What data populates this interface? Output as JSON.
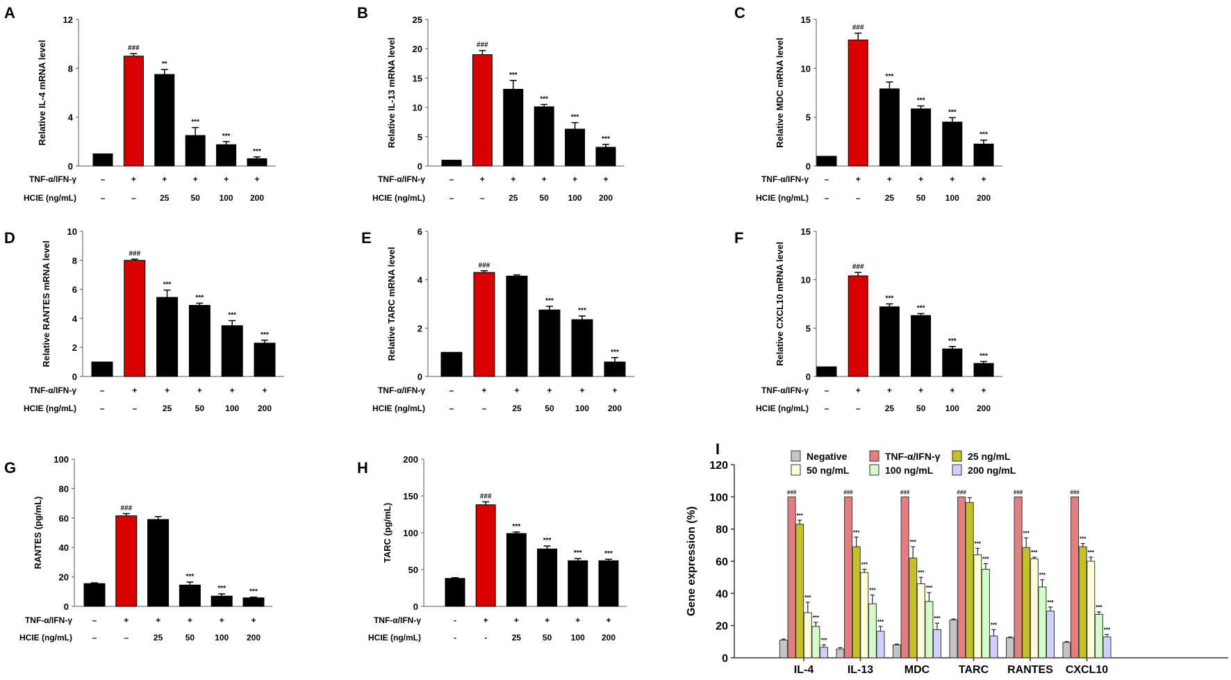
{
  "chart_data": [
    {
      "panel": "A",
      "type": "bar",
      "ylabel": "Relative IL-4 mRNA level",
      "ylim": [
        0,
        12
      ],
      "yticks": [
        0,
        4,
        8,
        12
      ],
      "values": [
        1,
        9.0,
        7.5,
        2.5,
        1.75,
        0.6
      ],
      "errors": [
        0,
        0.2,
        0.4,
        0.65,
        0.25,
        0.15
      ],
      "sig": [
        "",
        "###",
        "**",
        "***",
        "***",
        "***"
      ],
      "row1_label": "TNF-α/IFN-γ",
      "row1": [
        "–",
        "+",
        "+",
        "+",
        "+",
        "+"
      ],
      "row2_label": "HCIE (ng/mL)",
      "row2": [
        "–",
        "–",
        "25",
        "50",
        "100",
        "200"
      ]
    },
    {
      "panel": "B",
      "type": "bar",
      "ylabel": "Relative IL-13 mRNA level",
      "ylim": [
        0,
        25
      ],
      "yticks": [
        0,
        5,
        10,
        15,
        20,
        25
      ],
      "values": [
        1,
        19.0,
        13.1,
        10.1,
        6.3,
        3.2
      ],
      "errors": [
        0,
        0.7,
        1.5,
        0.4,
        1.1,
        0.5
      ],
      "sig": [
        "",
        "###",
        "***",
        "***",
        "***",
        "***"
      ],
      "row1_label": "TNF-α/IFN-γ",
      "row1": [
        "–",
        "+",
        "+",
        "+",
        "+",
        "+"
      ],
      "row2_label": "HCIE (ng/mL)",
      "row2": [
        "–",
        "–",
        "25",
        "50",
        "100",
        "200"
      ]
    },
    {
      "panel": "C",
      "type": "bar",
      "ylabel": "Relative MDC mRNA level",
      "ylim": [
        0,
        15
      ],
      "yticks": [
        0,
        5,
        10,
        15
      ],
      "values": [
        1,
        12.9,
        7.9,
        5.85,
        4.5,
        2.25
      ],
      "errors": [
        0,
        0.7,
        0.7,
        0.3,
        0.45,
        0.4
      ],
      "sig": [
        "",
        "###",
        "***",
        "***",
        "***",
        "***"
      ],
      "row1_label": "TNF-α/IFN-γ",
      "row1": [
        "–",
        "+",
        "+",
        "+",
        "+",
        "+"
      ],
      "row2_label": "HCIE (ng/mL)",
      "row2": [
        "–",
        "–",
        "25",
        "50",
        "100",
        "200"
      ]
    },
    {
      "panel": "D",
      "type": "bar",
      "ylabel": "Relative RANTES mRNA level",
      "ylim": [
        0,
        10
      ],
      "yticks": [
        0,
        2,
        4,
        6,
        8,
        10
      ],
      "values": [
        1,
        8.0,
        5.45,
        4.9,
        3.5,
        2.3
      ],
      "errors": [
        0,
        0.08,
        0.5,
        0.15,
        0.35,
        0.2
      ],
      "sig": [
        "",
        "###",
        "***",
        "***",
        "***",
        "***"
      ],
      "row1_label": "TNF-α/IFN-γ",
      "row1": [
        "–",
        "+",
        "+",
        "+",
        "+",
        "+"
      ],
      "row2_label": "HCIE (ng/mL)",
      "row2": [
        "–",
        "–",
        "25",
        "50",
        "100",
        "200"
      ]
    },
    {
      "panel": "E",
      "type": "bar",
      "ylabel": "Relative TARC mRNA level",
      "ylim": [
        0,
        6
      ],
      "yticks": [
        0,
        2,
        4,
        6
      ],
      "values": [
        1,
        4.3,
        4.15,
        2.75,
        2.35,
        0.6
      ],
      "errors": [
        0,
        0.07,
        0.05,
        0.15,
        0.15,
        0.18
      ],
      "sig": [
        "",
        "###",
        "",
        "***",
        "***",
        "***"
      ],
      "row1_label": "TNF-α/IFN-γ",
      "row1": [
        "–",
        "+",
        "+",
        "+",
        "+",
        "+"
      ],
      "row2_label": "HCIE (ng/mL)",
      "row2": [
        "–",
        "–",
        "25",
        "50",
        "100",
        "200"
      ]
    },
    {
      "panel": "F",
      "type": "bar",
      "ylabel": "Relative CXCL10 mRNA level",
      "ylim": [
        0,
        15
      ],
      "yticks": [
        0,
        5,
        10,
        15
      ],
      "values": [
        1,
        10.4,
        7.2,
        6.3,
        2.85,
        1.35
      ],
      "errors": [
        0,
        0.35,
        0.3,
        0.2,
        0.25,
        0.2
      ],
      "sig": [
        "",
        "###",
        "***",
        "***",
        "***",
        "***"
      ],
      "row1_label": "TNF-α/IFN-γ",
      "row1": [
        "–",
        "+",
        "+",
        "+",
        "+",
        "+"
      ],
      "row2_label": "HCIE (ng/mL)",
      "row2": [
        "–",
        "–",
        "25",
        "50",
        "100",
        "200"
      ]
    },
    {
      "panel": "G",
      "type": "bar",
      "ylabel": "RANTES (pg/mL)",
      "ylim": [
        0,
        100
      ],
      "yticks": [
        0,
        20,
        40,
        60,
        80,
        100
      ],
      "values": [
        15.5,
        61.5,
        59,
        14.5,
        7,
        5.8
      ],
      "errors": [
        0.5,
        1.5,
        2,
        2,
        1.5,
        0.5
      ],
      "sig": [
        "",
        "###",
        "",
        "***",
        "***",
        "***"
      ],
      "row1_label": "TNF-α/IFN-γ",
      "row1": [
        "–",
        "+",
        "+",
        "+",
        "+",
        "+"
      ],
      "row2_label": "HCIE (ng/mL)",
      "row2": [
        "–",
        "–",
        "25",
        "50",
        "100",
        "200"
      ]
    },
    {
      "panel": "H",
      "type": "bar",
      "ylabel": "TARC (pg/mL)",
      "ylim": [
        0,
        200
      ],
      "yticks": [
        0,
        50,
        100,
        150,
        200
      ],
      "values": [
        38,
        138,
        99,
        78,
        62,
        62
      ],
      "errors": [
        1,
        4,
        2,
        4,
        3,
        2
      ],
      "sig": [
        "",
        "###",
        "***",
        "***",
        "***",
        "***"
      ],
      "row1_label": "TNF-α/IFN-γ",
      "row1": [
        "-",
        "+",
        "+",
        "+",
        "+",
        "+"
      ],
      "row2_label": "HCIE (ng/mL)",
      "row2": [
        "-",
        "-",
        "25",
        "50",
        "100",
        "200"
      ]
    },
    {
      "panel": "I",
      "type": "bar",
      "ylabel": "Gene expression (%)",
      "ylim": [
        0,
        120
      ],
      "yticks": [
        0,
        20,
        40,
        60,
        80,
        100,
        120
      ],
      "categories": [
        "IL-4",
        "IL-13",
        "MDC",
        "TARC",
        "RANTES",
        "CXCL10"
      ],
      "series": [
        {
          "name": "Negative",
          "color": "#c4c4c4",
          "values": [
            11,
            5.5,
            8,
            23.5,
            12.5,
            9.5
          ],
          "errors": [
            0.6,
            0.8,
            0.5,
            0.6,
            0.4,
            0.6
          ],
          "sig": [
            "",
            "",
            "",
            "",
            "",
            ""
          ]
        },
        {
          "name": "TNF-α/IFN-γ",
          "color": "#e47f7f",
          "values": [
            100,
            100,
            100,
            100,
            100,
            100
          ],
          "errors": [
            0,
            0,
            0,
            0,
            0,
            0
          ],
          "sig": [
            "###",
            "###",
            "###",
            "###",
            "###",
            "###"
          ]
        },
        {
          "name": "25 ng/mL",
          "color": "#c4c02a",
          "values": [
            83,
            69,
            62,
            96.5,
            68.5,
            69
          ],
          "errors": [
            2.5,
            6,
            7,
            3,
            6,
            2
          ],
          "sig": [
            "***",
            "***",
            "***",
            "",
            "***",
            "***"
          ]
        },
        {
          "name": "50 ng/mL",
          "color": "#fffed8",
          "values": [
            28,
            53,
            46,
            64,
            61.5,
            60
          ],
          "errors": [
            6.5,
            2,
            4,
            4,
            1,
            2.5
          ],
          "sig": [
            "***",
            "***",
            "***",
            "***",
            "***",
            "***"
          ]
        },
        {
          "name": "100 ng/mL",
          "color": "#d3fcca",
          "values": [
            19.5,
            33.5,
            35,
            55,
            44,
            27
          ],
          "errors": [
            2.5,
            5.5,
            5.5,
            3.5,
            4.5,
            1.5
          ],
          "sig": [
            "***",
            "***",
            "***",
            "***",
            "***",
            "***"
          ]
        },
        {
          "name": "200 ng/mL",
          "color": "#cfd0fc",
          "values": [
            6.5,
            16.5,
            17.5,
            13.5,
            29,
            13
          ],
          "errors": [
            1.5,
            3,
            4,
            4,
            2.5,
            1.5
          ],
          "sig": [
            "***",
            "***",
            "***",
            "***",
            "***",
            "***"
          ]
        }
      ],
      "legend": "top"
    }
  ]
}
